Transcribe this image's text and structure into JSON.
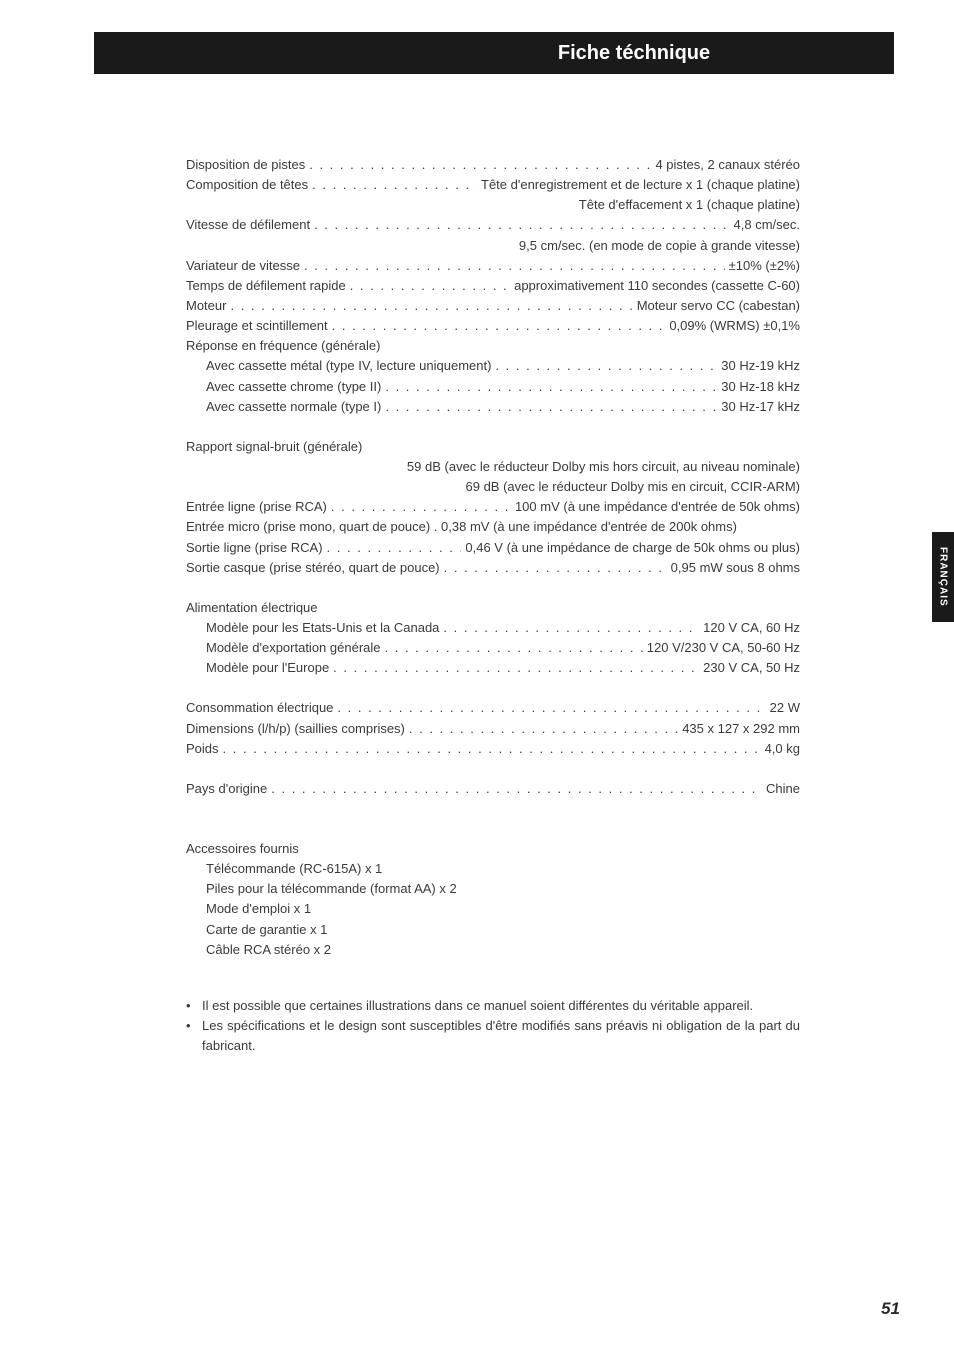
{
  "header": {
    "title": "Fiche téchnique"
  },
  "sidetab": "FRANÇAIS",
  "pagenum": "51",
  "specs": [
    {
      "type": "dotted",
      "label": "Disposition de pistes",
      "value": "4 pistes, 2 canaux stéréo"
    },
    {
      "type": "dotted",
      "label": "Composition de têtes",
      "value": "Tête d'enregistrement et de lecture x 1 (chaque platine)"
    },
    {
      "type": "right",
      "value": "Tête d'effacement x 1 (chaque platine)"
    },
    {
      "type": "dotted",
      "label": "Vitesse de défilement",
      "value": "4,8 cm/sec."
    },
    {
      "type": "right",
      "value": "9,5 cm/sec. (en mode de copie à grande vitesse)"
    },
    {
      "type": "dotted",
      "label": "Variateur de vitesse",
      "value": "±10% (±2%)"
    },
    {
      "type": "dotted",
      "label": "Temps de défilement rapide",
      "value": "approximativement 110 secondes (cassette C-60)"
    },
    {
      "type": "dotted",
      "label": "Moteur",
      "value": "Moteur servo CC (cabestan)"
    },
    {
      "type": "dotted",
      "label": "Pleurage et scintillement",
      "value": "0,09% (WRMS) ±0,1%"
    },
    {
      "type": "plain",
      "label": "Réponse en fréquence (générale)"
    },
    {
      "type": "dotted",
      "indent": true,
      "label": "Avec cassette métal (type IV, lecture uniquement)",
      "value": "30 Hz-19 kHz"
    },
    {
      "type": "dotted",
      "indent": true,
      "label": "Avec cassette chrome (type II)",
      "value": "30 Hz-18 kHz"
    },
    {
      "type": "dotted",
      "indent": true,
      "label": "Avec cassette normale (type I)",
      "value": "30 Hz-17 kHz"
    },
    {
      "type": "gap"
    },
    {
      "type": "plain",
      "label": "Rapport signal-bruit (générale)"
    },
    {
      "type": "right",
      "value": "59 dB (avec le réducteur Dolby mis hors circuit, au niveau nominale)"
    },
    {
      "type": "right",
      "value": "69 dB (avec le réducteur Dolby mis en circuit, CCIR-ARM)"
    },
    {
      "type": "dotted",
      "label": "Entrée ligne (prise RCA)",
      "value": "100 mV (à une impédance d'entrée de 50k ohms)"
    },
    {
      "type": "plain-full",
      "label": "Entrée micro (prise mono, quart de pouce) . 0,38 mV (à une impédance d'entrée de 200k ohms)"
    },
    {
      "type": "dotted",
      "label": "Sortie ligne (prise RCA)",
      "value": "0,46 V (à une impédance de charge de 50k ohms ou plus)"
    },
    {
      "type": "dotted",
      "label": "Sortie casque (prise stéréo, quart de pouce)",
      "value": "0,95 mW sous 8 ohms"
    },
    {
      "type": "gap"
    },
    {
      "type": "plain",
      "label": "Alimentation électrique"
    },
    {
      "type": "dotted",
      "indent": true,
      "label": "Modèle pour les Etats-Unis et la Canada",
      "value": "120 V CA, 60 Hz"
    },
    {
      "type": "dotted",
      "indent": true,
      "label": "Modèle d'exportation générale",
      "value": "120 V/230 V CA, 50-60 Hz"
    },
    {
      "type": "dotted",
      "indent": true,
      "label": "Modèle pour l'Europe",
      "value": "230 V CA, 50 Hz"
    },
    {
      "type": "gap"
    },
    {
      "type": "dotted",
      "label": "Consommation électrique",
      "value": "22 W"
    },
    {
      "type": "dotted",
      "label": "Dimensions (l/h/p) (saillies comprises)",
      "value": "435 x 127 x 292 mm"
    },
    {
      "type": "dotted",
      "label": "Poids",
      "value": "4,0 kg"
    },
    {
      "type": "gap"
    },
    {
      "type": "dotted",
      "label": "Pays d'origine",
      "value": "Chine"
    }
  ],
  "accessories": {
    "heading": "Accessoires fournis",
    "items": [
      "Télécommande (RC-615A) x 1",
      "Piles pour la télécommande (format AA) x 2",
      "Mode d'emploi x 1",
      "Carte de garantie x 1",
      "Câble RCA stéréo x 2"
    ]
  },
  "notes": [
    "Il est possible que certaines illustrations dans ce manuel soient différentes du véritable appareil.",
    "Les spécifications et le design sont susceptibles d'être modifiés sans préavis ni obligation de la part du fabricant."
  ]
}
